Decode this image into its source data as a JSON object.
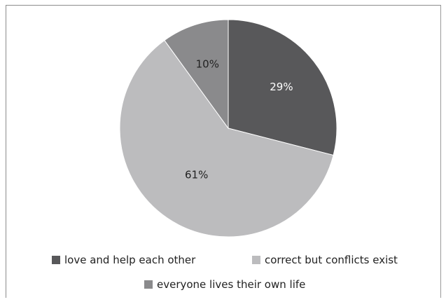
{
  "chart_data": {
    "type": "pie",
    "title": "",
    "slices": [
      {
        "label": "love and help each other",
        "value": 29,
        "display": "29%",
        "color": "#58585a"
      },
      {
        "label": "correct but conflicts exist",
        "value": 61,
        "display": "61%",
        "color": "#bcbcbe"
      },
      {
        "label": "everyone lives their own life",
        "value": 10,
        "display": "10%",
        "color": "#8a8a8c"
      }
    ],
    "start_angle_deg": 0,
    "direction": "clockwise",
    "legend_position": "bottom"
  },
  "legend": {
    "item0": "love and help each other",
    "item1": "correct but conflicts exist",
    "item2": "everyone lives their own life"
  }
}
